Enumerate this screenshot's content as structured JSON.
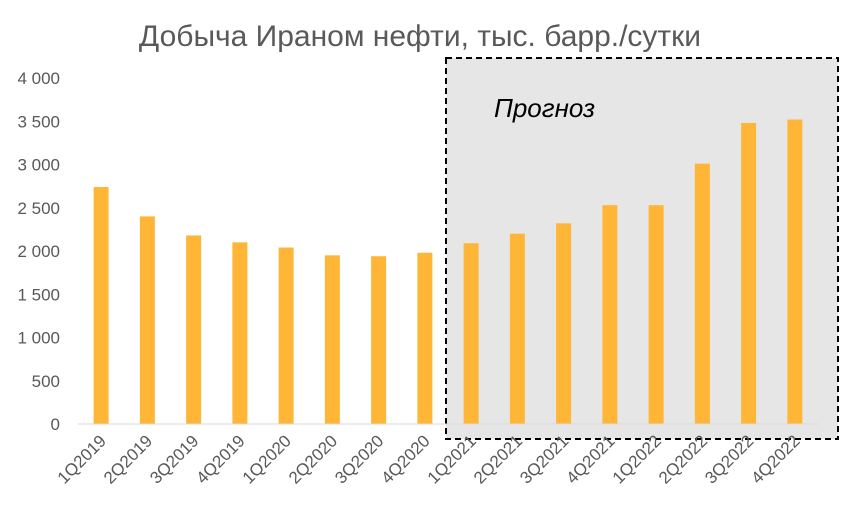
{
  "chart_data": {
    "type": "bar",
    "title": "Добыча Ираном нефти, тыс. барр./сутки",
    "xlabel": "",
    "ylabel": "",
    "categories": [
      "1Q2019",
      "2Q2019",
      "3Q2019",
      "4Q2019",
      "1Q2020",
      "2Q2020",
      "3Q2020",
      "4Q2020",
      "1Q2021",
      "2Q2021",
      "3Q2021",
      "4Q2021",
      "1Q2022",
      "2Q2022",
      "3Q2022",
      "4Q2022"
    ],
    "values": [
      2740,
      2400,
      2180,
      2100,
      2040,
      1950,
      1940,
      1980,
      2090,
      2200,
      2320,
      2530,
      2530,
      3010,
      3480,
      3520
    ],
    "ylim": [
      0,
      4000
    ],
    "yticks": [
      0,
      500,
      1000,
      1500,
      2000,
      2500,
      3000,
      3500,
      4000
    ],
    "ytick_labels": [
      "0",
      "500",
      "1 000",
      "1 500",
      "2 000",
      "2 500",
      "3 000",
      "3 500",
      "4 000"
    ],
    "grid": false,
    "legend": "none",
    "bar_color": "#FFB636",
    "forecast": {
      "label": "Прогноз",
      "start_category": "1Q2021",
      "end_category": "4Q2022",
      "shade_color": "#E6E6E6"
    }
  }
}
